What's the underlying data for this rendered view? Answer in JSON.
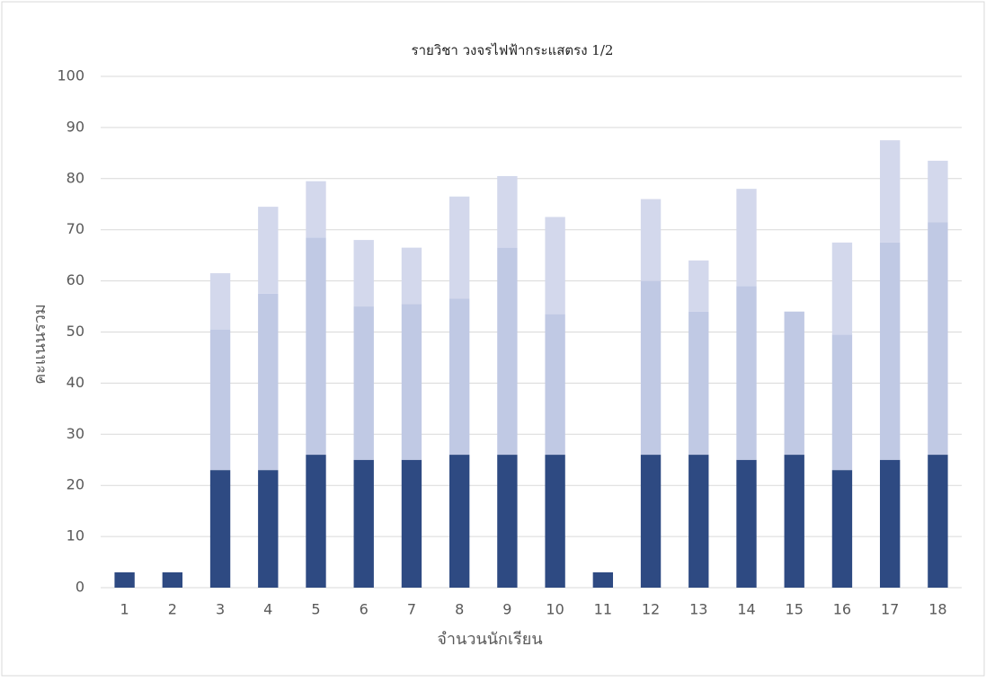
{
  "chart_data": {
    "type": "stacked_bar",
    "title": "รายวิชา วงจรไฟฟ้ากระแสตรง 1/2",
    "x_label": "จำนวนนักเรียน",
    "y_label": "คะแนนรวม",
    "categories": [
      "1",
      "2",
      "3",
      "4",
      "5",
      "6",
      "7",
      "8",
      "9",
      "10",
      "11",
      "12",
      "13",
      "14",
      "15",
      "16",
      "17",
      "18"
    ],
    "series": [
      {
        "color": "#2e4a82",
        "values": [
          3,
          3,
          23,
          23,
          26,
          25,
          25,
          26,
          26,
          26,
          3,
          26,
          26,
          25,
          26,
          23,
          25,
          26
        ]
      },
      {
        "color": "#c0c9e4",
        "values": [
          0,
          0,
          27.5,
          34.5,
          42.5,
          30,
          30.5,
          30.5,
          40.5,
          27.5,
          0,
          34,
          28,
          34,
          28,
          26.5,
          42.5,
          45.5
        ]
      },
      {
        "color": "#d3d8ec",
        "values": [
          0,
          0,
          11,
          17,
          11,
          13,
          11,
          20,
          14,
          19,
          0,
          16,
          10,
          19,
          0,
          18,
          20,
          12
        ]
      }
    ],
    "ylim": [
      0,
      100
    ],
    "yticks": [
      0,
      10,
      20,
      30,
      40,
      50,
      60,
      70,
      80,
      90,
      100
    ],
    "grid": true
  }
}
